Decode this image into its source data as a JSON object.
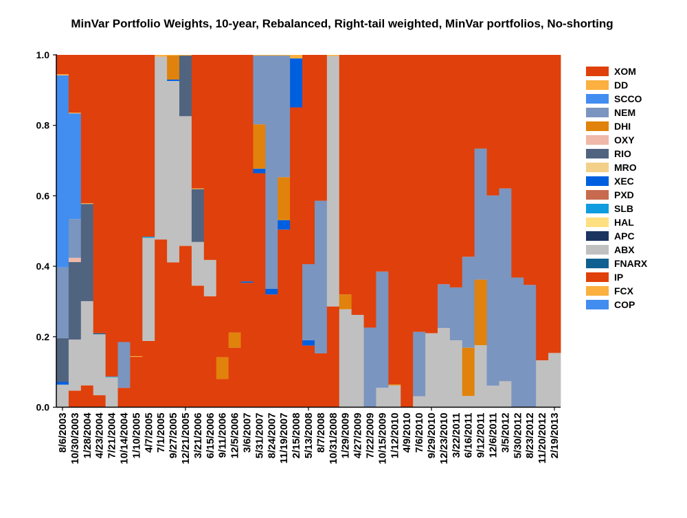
{
  "chart_data": {
    "type": "bar",
    "stacked": true,
    "title": "MinVar Portfolio Weights, 10-year, Rebalanced, Right-tail weighted, MinVar portfolios, No-shorting",
    "xlabel": "",
    "ylabel": "",
    "ylim": [
      0,
      1
    ],
    "yticks": [
      "0.0",
      "0.2",
      "0.4",
      "0.6",
      "0.8",
      "1.0"
    ],
    "legend_position": "right",
    "categories": [
      "8/6/2003",
      "10/30/2003",
      "1/28/2004",
      "4/23/2004",
      "7/21/2004",
      "10/14/2004",
      "1/10/2005",
      "4/7/2005",
      "7/1/2005",
      "9/27/2005",
      "12/21/2005",
      "3/21/2006",
      "6/15/2006",
      "9/11/2006",
      "12/5/2006",
      "3/6/2007",
      "5/31/2007",
      "8/24/2007",
      "11/19/2007",
      "2/15/2008",
      "5/13/2008",
      "8/7/2008",
      "10/31/2008",
      "1/29/2009",
      "4/27/2009",
      "7/22/2009",
      "10/15/2009",
      "1/12/2010",
      "4/9/2010",
      "7/6/2010",
      "9/29/2010",
      "12/23/2010",
      "3/22/2011",
      "6/16/2011",
      "9/12/2011",
      "12/6/2011",
      "3/5/2012",
      "5/30/2012",
      "8/23/2012",
      "11/20/2012",
      "2/19/2013"
    ],
    "stack_order": [
      "IP",
      "ABX",
      "FNARX",
      "SLB",
      "XEC",
      "RIO",
      "OXY",
      "DHI",
      "NEM",
      "SCCO",
      "DD",
      "MRO",
      "PXD",
      "HAL",
      "APC",
      "FCX",
      "COP",
      "XOM"
    ],
    "series": [
      {
        "name": "XOM",
        "color": "#E0400B",
        "values": [
          0.055,
          0.164,
          0.421,
          0.79,
          0.913,
          0.815,
          0.855,
          0.516,
          0,
          0,
          0,
          0.379,
          0.582,
          0.858,
          0.788,
          0.643,
          0,
          0,
          0,
          0,
          0.594,
          0.414,
          0,
          0.68,
          0.738,
          0.774,
          0.615,
          0.935,
          1,
          0.786,
          0.79,
          0.651,
          0.66,
          0.573,
          0.266,
          0.399,
          0.379,
          0.632,
          0.653,
          0.867,
          0.846
        ]
      },
      {
        "name": "DD",
        "color": "#FBB040",
        "values": [
          0.003,
          0.002,
          0.002,
          0,
          0,
          0,
          0.002,
          0,
          0.005,
          0.002,
          0.002,
          0.002,
          0,
          0,
          0,
          0,
          0.002,
          0.002,
          0.002,
          0.01,
          0,
          0,
          0.003,
          0,
          0,
          0,
          0,
          0,
          0,
          0,
          0,
          0,
          0,
          0,
          0,
          0,
          0,
          0,
          0,
          0,
          0
        ]
      },
      {
        "name": "SCCO",
        "color": "#428DF0",
        "values": [
          0.545,
          0.3,
          0,
          0,
          0,
          0,
          0,
          0,
          0,
          0,
          0,
          0,
          0,
          0,
          0,
          0,
          0,
          0,
          0,
          0,
          0,
          0,
          0,
          0,
          0,
          0,
          0,
          0,
          0,
          0,
          0,
          0,
          0,
          0,
          0,
          0,
          0,
          0,
          0,
          0,
          0
        ]
      },
      {
        "name": "NEM",
        "color": "#7A95BF",
        "values": [
          0.201,
          0.11,
          0,
          0,
          0,
          0.13,
          0,
          0,
          0,
          0,
          0,
          0,
          0,
          0,
          0,
          0,
          0.195,
          0.662,
          0.345,
          0,
          0.216,
          0.433,
          0,
          0,
          0,
          0.226,
          0.33,
          0,
          0,
          0.183,
          0,
          0.124,
          0.15,
          0.258,
          0.372,
          0.54,
          0.547,
          0.368,
          0.347,
          0,
          0
        ]
      },
      {
        "name": "DHI",
        "color": "#E0820B",
        "values": [
          0,
          0,
          0,
          0,
          0,
          0,
          0,
          0,
          0,
          0.068,
          0,
          0,
          0,
          0.062,
          0.043,
          0,
          0.126,
          0,
          0.122,
          0,
          0,
          0,
          0,
          0.042,
          0,
          0,
          0,
          0.003,
          0,
          0,
          0,
          0,
          0,
          0.137,
          0.186,
          0,
          0,
          0,
          0,
          0,
          0
        ]
      },
      {
        "name": "OXY",
        "color": "#F0B8A8",
        "values": [
          0,
          0.012,
          0,
          0,
          0,
          0,
          0,
          0,
          0,
          0,
          0,
          0,
          0,
          0,
          0,
          0,
          0,
          0,
          0,
          0,
          0,
          0,
          0,
          0,
          0,
          0,
          0,
          0,
          0,
          0,
          0,
          0,
          0,
          0,
          0,
          0,
          0,
          0,
          0,
          0,
          0
        ]
      },
      {
        "name": "RIO",
        "color": "#506480",
        "values": [
          0.124,
          0.22,
          0.276,
          0,
          0,
          0,
          0,
          0,
          0,
          0,
          0.172,
          0.15,
          0,
          0,
          0,
          0,
          0,
          0,
          0,
          0,
          0,
          0,
          0,
          0,
          0,
          0,
          0,
          0,
          0,
          0,
          0,
          0,
          0,
          0,
          0,
          0,
          0,
          0,
          0,
          0,
          0
        ]
      },
      {
        "name": "MRO",
        "color": "#F2D08A",
        "values": [
          0,
          0,
          0,
          0,
          0,
          0,
          0,
          0,
          0,
          0,
          0,
          0,
          0,
          0,
          0,
          0,
          0,
          0,
          0,
          0,
          0,
          0,
          0,
          0,
          0,
          0,
          0,
          0,
          0,
          0,
          0,
          0,
          0,
          0,
          0,
          0,
          0,
          0,
          0,
          0,
          0
        ]
      },
      {
        "name": "XEC",
        "color": "#005FDF",
        "values": [
          0.008,
          0,
          0,
          0,
          0,
          0,
          0,
          0,
          0,
          0.004,
          0,
          0,
          0,
          0,
          0,
          0.004,
          0.013,
          0.016,
          0.027,
          0.139,
          0.015,
          0,
          0,
          0,
          0,
          0,
          0,
          0,
          0,
          0,
          0,
          0,
          0,
          0,
          0,
          0,
          0,
          0,
          0,
          0,
          0
        ]
      },
      {
        "name": "PXD",
        "color": "#C86A50",
        "values": [
          0,
          0,
          0,
          0,
          0,
          0,
          0,
          0,
          0,
          0,
          0,
          0,
          0,
          0,
          0,
          0,
          0,
          0,
          0,
          0,
          0,
          0,
          0,
          0,
          0,
          0,
          0,
          0,
          0,
          0,
          0,
          0,
          0,
          0,
          0,
          0,
          0,
          0,
          0,
          0,
          0
        ]
      },
      {
        "name": "SLB",
        "color": "#109CDF",
        "values": [
          0,
          0,
          0,
          0,
          0.002,
          0,
          0,
          0.003,
          0,
          0,
          0,
          0,
          0,
          0,
          0,
          0,
          0,
          0,
          0,
          0,
          0,
          0,
          0,
          0,
          0,
          0,
          0,
          0,
          0,
          0,
          0,
          0,
          0,
          0,
          0,
          0,
          0,
          0,
          0,
          0,
          0
        ]
      },
      {
        "name": "HAL",
        "color": "#FFE080",
        "values": [
          0,
          0,
          0,
          0,
          0,
          0,
          0,
          0,
          0,
          0,
          0,
          0,
          0,
          0,
          0,
          0,
          0,
          0,
          0,
          0,
          0,
          0,
          0,
          0,
          0,
          0,
          0,
          0,
          0,
          0,
          0,
          0,
          0,
          0,
          0,
          0,
          0,
          0,
          0,
          0,
          0
        ]
      },
      {
        "name": "APC",
        "color": "#1C3560",
        "values": [
          0,
          0,
          0,
          0,
          0,
          0,
          0,
          0,
          0,
          0,
          0,
          0,
          0,
          0,
          0,
          0,
          0,
          0,
          0,
          0,
          0,
          0,
          0,
          0,
          0,
          0,
          0,
          0,
          0,
          0,
          0,
          0,
          0,
          0,
          0,
          0,
          0,
          0,
          0,
          0,
          0
        ]
      },
      {
        "name": "ABX",
        "color": "#C0C0C0",
        "values": [
          0.064,
          0.145,
          0.239,
          0.173,
          0.085,
          0,
          0,
          0.293,
          0.519,
          0.515,
          0.368,
          0.124,
          0.103,
          0,
          0,
          0,
          0,
          0,
          0,
          0,
          0,
          0,
          0.711,
          0.278,
          0.262,
          0,
          0.055,
          0.062,
          0,
          0.031,
          0.21,
          0.225,
          0.19,
          0.032,
          0.176,
          0.061,
          0.074,
          0,
          0,
          0.133,
          0.154
        ]
      },
      {
        "name": "FNARX",
        "color": "#0F6090",
        "values": [
          0,
          0,
          0,
          0.003,
          0,
          0,
          0,
          0,
          0,
          0,
          0,
          0,
          0,
          0,
          0,
          0,
          0,
          0,
          0,
          0,
          0,
          0,
          0,
          0,
          0,
          0,
          0,
          0,
          0,
          0,
          0,
          0,
          0,
          0,
          0,
          0,
          0,
          0,
          0,
          0,
          0
        ]
      },
      {
        "name": "IP",
        "color": "#E0400B",
        "values": [
          0,
          0.047,
          0.062,
          0.034,
          0,
          0.055,
          0.143,
          0.188,
          0.476,
          0.411,
          0.458,
          0.345,
          0.315,
          0.08,
          0.169,
          0.353,
          0.664,
          0.32,
          0.504,
          0.851,
          0.175,
          0.153,
          0.286,
          0,
          0,
          0,
          0,
          0,
          0,
          0,
          0,
          0,
          0,
          0,
          0,
          0,
          0,
          0,
          0,
          0,
          0
        ]
      },
      {
        "name": "FCX",
        "color": "#FBB040",
        "values": [
          0,
          0,
          0,
          0,
          0,
          0,
          0,
          0,
          0,
          0,
          0,
          0,
          0,
          0,
          0,
          0,
          0,
          0,
          0,
          0,
          0,
          0,
          0,
          0,
          0,
          0,
          0,
          0,
          0,
          0,
          0,
          0,
          0,
          0,
          0,
          0,
          0,
          0,
          0,
          0,
          0
        ]
      },
      {
        "name": "COP",
        "color": "#428DF0",
        "values": [
          0,
          0,
          0,
          0,
          0,
          0,
          0,
          0,
          0,
          0,
          0,
          0,
          0,
          0,
          0,
          0,
          0,
          0,
          0,
          0,
          0,
          0,
          0,
          0,
          0,
          0,
          0,
          0,
          0,
          0,
          0,
          0,
          0,
          0,
          0,
          0,
          0,
          0,
          0,
          0,
          0
        ]
      }
    ]
  }
}
